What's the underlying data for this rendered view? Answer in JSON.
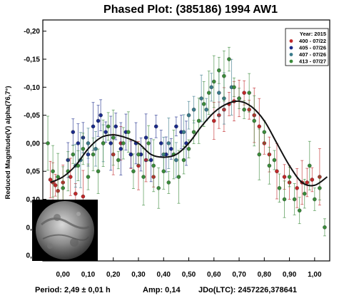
{
  "chart_data": {
    "type": "scatter",
    "title": "Phased Plot: (385186) 1994 AW1",
    "ylabel": "Reduced Magnitude(V) alpha(76,7°)",
    "xlabel": "",
    "xlim": [
      -0.08,
      1.06
    ],
    "ylim": [
      0.21,
      -0.22
    ],
    "y_inverted": true,
    "grid": false,
    "legend_position": "top-right",
    "x_ticks": [
      "0,00",
      "0,10",
      "0,20",
      "0,30",
      "0,40",
      "0,50",
      "0,60",
      "0,70",
      "0,80",
      "0,90",
      "1,00"
    ],
    "y_ticks": [
      "-0,20",
      "-0,15",
      "-0,10",
      "-0,05",
      "0,00",
      "0,05",
      "0,10",
      "0,15",
      "0,20"
    ],
    "legend_title": "Year: 2015",
    "series": [
      {
        "name": "400 - 07/22",
        "color": "#c0282a",
        "points": [
          [
            -0.05,
            0.065
          ],
          [
            -0.04,
            0.07
          ],
          [
            -0.03,
            0.075
          ],
          [
            -0.02,
            0.085
          ],
          [
            0.0,
            0.07
          ],
          [
            0.03,
            0.06
          ],
          [
            0.05,
            0.09
          ],
          [
            0.08,
            0.095
          ],
          [
            0.2,
            0.02
          ],
          [
            0.23,
            0.0
          ],
          [
            0.27,
            0.02
          ],
          [
            0.3,
            0.04
          ],
          [
            0.33,
            0.03
          ],
          [
            0.36,
            0.06
          ],
          [
            0.6,
            -0.04
          ],
          [
            0.62,
            -0.05
          ],
          [
            0.64,
            -0.06
          ],
          [
            0.66,
            -0.07
          ],
          [
            0.68,
            -0.075
          ],
          [
            0.7,
            -0.08
          ],
          [
            0.72,
            -0.09
          ],
          [
            0.74,
            -0.06
          ],
          [
            0.76,
            -0.05
          ],
          [
            0.78,
            -0.03
          ],
          [
            0.8,
            0.0
          ],
          [
            0.82,
            0.02
          ],
          [
            0.85,
            0.05
          ],
          [
            0.88,
            0.06
          ],
          [
            0.9,
            0.07
          ],
          [
            0.93,
            0.08
          ],
          [
            0.95,
            0.07
          ],
          [
            0.97,
            0.07
          ],
          [
            0.99,
            0.065
          ],
          [
            1.02,
            0.06
          ]
        ]
      },
      {
        "name": "405 - 07/26",
        "color": "#1a2a8a",
        "points": [
          [
            0.02,
            0.03
          ],
          [
            0.04,
            -0.02
          ],
          [
            0.06,
            0.0
          ],
          [
            0.08,
            -0.01
          ],
          [
            0.1,
            0.02
          ],
          [
            0.12,
            -0.03
          ],
          [
            0.14,
            -0.04
          ],
          [
            0.15,
            -0.05
          ],
          [
            0.17,
            -0.02
          ],
          [
            0.19,
            0.0
          ],
          [
            0.21,
            -0.03
          ],
          [
            0.23,
            0.01
          ],
          [
            0.25,
            -0.02
          ],
          [
            0.27,
            0.02
          ],
          [
            0.29,
            0.0
          ],
          [
            0.31,
            0.02
          ],
          [
            0.33,
            -0.01
          ],
          [
            0.35,
            0.03
          ],
          [
            0.37,
            -0.03
          ],
          [
            0.39,
            0.0
          ],
          [
            0.41,
            0.02
          ],
          [
            0.43,
            0.01
          ],
          [
            0.45,
            -0.03
          ],
          [
            0.47,
            -0.02
          ],
          [
            0.49,
            0.0
          ]
        ]
      },
      {
        "name": "407 - 07/26",
        "color": "#3a7a8a",
        "points": [
          [
            0.05,
            0.04
          ],
          [
            0.07,
            0.03
          ],
          [
            0.1,
            0.0
          ],
          [
            0.13,
            0.01
          ],
          [
            0.16,
            0.0
          ],
          [
            0.4,
            0.02
          ],
          [
            0.42,
            0.0
          ],
          [
            0.45,
            0.03
          ],
          [
            0.48,
            -0.02
          ],
          [
            0.5,
            -0.05
          ],
          [
            0.52,
            -0.06
          ],
          [
            0.55,
            -0.08
          ],
          [
            0.57,
            -0.06
          ],
          [
            0.59,
            -0.1
          ],
          [
            0.62,
            -0.09
          ],
          [
            0.64,
            -0.08
          ],
          [
            0.67,
            -0.1
          ]
        ]
      },
      {
        "name": "413 - 07/27",
        "color": "#3a8a3a",
        "points": [
          [
            -0.06,
            0.0
          ],
          [
            -0.04,
            0.05
          ],
          [
            -0.02,
            0.06
          ],
          [
            0.0,
            0.08
          ],
          [
            0.02,
            0.05
          ],
          [
            0.04,
            0.02
          ],
          [
            0.06,
            0.04
          ],
          [
            0.08,
            0.01
          ],
          [
            0.1,
            0.06
          ],
          [
            0.12,
            0.02
          ],
          [
            0.14,
            0.05
          ],
          [
            0.16,
            0.0
          ],
          [
            0.18,
            -0.03
          ],
          [
            0.2,
            -0.01
          ],
          [
            0.22,
            0.03
          ],
          [
            0.24,
            0.0
          ],
          [
            0.26,
            -0.02
          ],
          [
            0.28,
            0.05
          ],
          [
            0.3,
            0.02
          ],
          [
            0.32,
            0.06
          ],
          [
            0.34,
            0.0
          ],
          [
            0.36,
            0.04
          ],
          [
            0.38,
            0.08
          ],
          [
            0.4,
            0.05
          ],
          [
            0.42,
            0.07
          ],
          [
            0.44,
            0.02
          ],
          [
            0.46,
            0.06
          ],
          [
            0.48,
            0.03
          ],
          [
            0.5,
            0.01
          ],
          [
            0.52,
            -0.02
          ],
          [
            0.54,
            -0.04
          ],
          [
            0.56,
            -0.07
          ],
          [
            0.58,
            -0.09
          ],
          [
            0.6,
            -0.11
          ],
          [
            0.62,
            -0.13
          ],
          [
            0.64,
            -0.12
          ],
          [
            0.66,
            -0.15
          ],
          [
            0.68,
            -0.1
          ],
          [
            0.7,
            -0.08
          ],
          [
            0.72,
            -0.06
          ],
          [
            0.74,
            -0.09
          ],
          [
            0.76,
            -0.04
          ],
          [
            0.78,
            0.02
          ],
          [
            0.8,
            -0.02
          ],
          [
            0.82,
            0.04
          ],
          [
            0.84,
            0.03
          ],
          [
            0.86,
            0.08
          ],
          [
            0.88,
            0.1
          ],
          [
            0.9,
            0.06
          ],
          [
            0.92,
            0.1
          ],
          [
            0.94,
            0.12
          ],
          [
            0.96,
            0.09
          ],
          [
            0.98,
            0.04
          ],
          [
            1.0,
            0.1
          ],
          [
            1.02,
            0.08
          ],
          [
            1.04,
            0.15
          ]
        ]
      }
    ],
    "fit_curve": {
      "color": "#111111",
      "points": [
        [
          -0.05,
          0.07
        ],
        [
          0.0,
          0.06
        ],
        [
          0.05,
          0.04
        ],
        [
          0.1,
          0.01
        ],
        [
          0.15,
          -0.01
        ],
        [
          0.2,
          -0.015
        ],
        [
          0.25,
          -0.01
        ],
        [
          0.3,
          0.0
        ],
        [
          0.35,
          0.02
        ],
        [
          0.4,
          0.025
        ],
        [
          0.45,
          0.02
        ],
        [
          0.5,
          0.0
        ],
        [
          0.55,
          -0.03
        ],
        [
          0.6,
          -0.055
        ],
        [
          0.65,
          -0.07
        ],
        [
          0.7,
          -0.075
        ],
        [
          0.75,
          -0.065
        ],
        [
          0.8,
          -0.04
        ],
        [
          0.85,
          0.0
        ],
        [
          0.9,
          0.04
        ],
        [
          0.95,
          0.07
        ],
        [
          1.0,
          0.075
        ],
        [
          1.05,
          0.06
        ]
      ]
    },
    "footer": {
      "period": "Period: 2,49 ± 0,01 h",
      "amp": "Amp: 0,14",
      "jdo": "JDo(LTC): 2457226,378641"
    }
  }
}
